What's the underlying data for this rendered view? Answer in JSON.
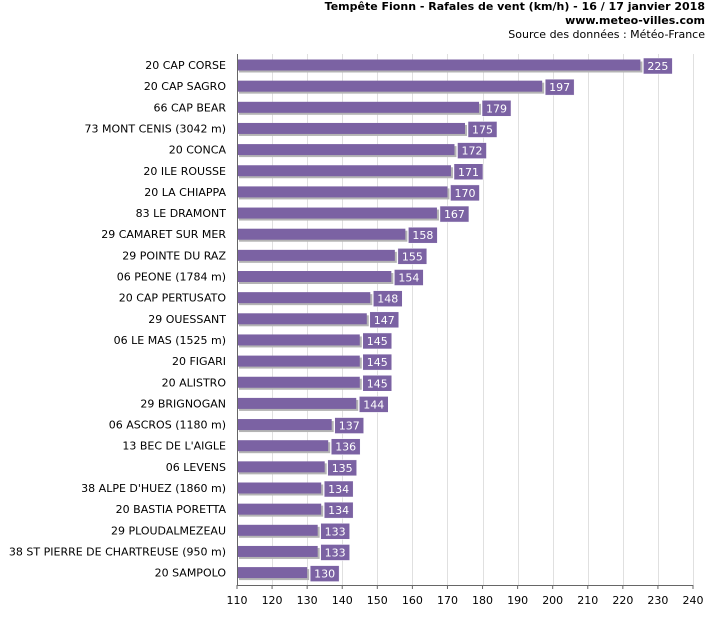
{
  "header": {
    "title": "Tempête Fionn - Rafales de vent (km/h) - 16 / 17 janvier 2018",
    "site": "www.meteo-villes.com",
    "source": "Source des données : Météo-France"
  },
  "colors": {
    "bar": "#7b62a3",
    "bar_shadow": "#b4b4b4",
    "label_box": "#7b62a3",
    "grid": "#e0e0e0",
    "axis": "#666666"
  },
  "chart_data": {
    "type": "bar",
    "orientation": "horizontal",
    "categories": [
      "20 CAP CORSE",
      "20 CAP SAGRO",
      "66 CAP BEAR",
      "73 MONT CENIS (3042 m)",
      "20 CONCA",
      "20 ILE ROUSSE",
      "20 LA CHIAPPA",
      "83 LE DRAMONT",
      "29 CAMARET SUR MER",
      "29 POINTE DU RAZ",
      "06 PEONE (1784 m)",
      "20 CAP PERTUSATO",
      "29 OUESSANT",
      "06 LE MAS (1525 m)",
      "20 FIGARI",
      "20 ALISTRO",
      "29 BRIGNOGAN",
      "06 ASCROS (1180 m)",
      "13 BEC DE L'AIGLE",
      "06 LEVENS",
      "38 ALPE D'HUEZ (1860 m)",
      "20 BASTIA PORETTA",
      "29 PLOUDALMEZEAU",
      "38 ST PIERRE DE CHARTREUSE (950 m)",
      "20 SAMPOLO"
    ],
    "values": [
      225,
      197,
      179,
      175,
      172,
      171,
      170,
      167,
      158,
      155,
      154,
      148,
      147,
      145,
      145,
      145,
      144,
      137,
      136,
      135,
      134,
      134,
      133,
      133,
      130
    ],
    "xlim": [
      110,
      240
    ],
    "xticks": [
      110,
      120,
      130,
      140,
      150,
      160,
      170,
      180,
      190,
      200,
      210,
      220,
      230,
      240
    ],
    "grid": "vertical",
    "data_labels": true,
    "legend": "none"
  }
}
